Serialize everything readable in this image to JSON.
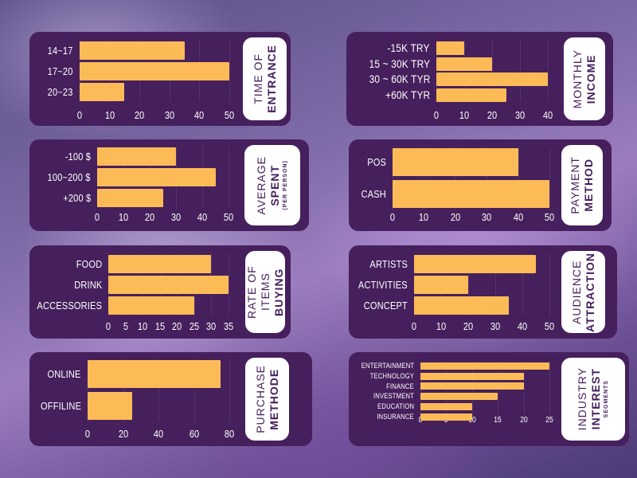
{
  "colors": {
    "panel": "#46205c",
    "bar": "#fdbb57",
    "title_bg": "#ffffff"
  },
  "chart_data": [
    {
      "type": "bar",
      "title": [
        "TIME OF",
        "ENTRANCE"
      ],
      "categories": [
        "14~17",
        "17~20",
        "20~23"
      ],
      "values": [
        35,
        50,
        15
      ],
      "ticks": [
        "0",
        "10",
        "20",
        "30",
        "40",
        "50"
      ],
      "xlim": [
        0,
        50
      ]
    },
    {
      "type": "bar",
      "title": [
        "MONTHLY",
        "INCOME"
      ],
      "categories": [
        "-15K TRY",
        "15 ~ 30K TRY",
        "30 ~ 60K TYR",
        "+60K TYR"
      ],
      "values": [
        10,
        20,
        40,
        25
      ],
      "ticks": [
        "0",
        "10",
        "20",
        "30",
        "40"
      ],
      "xlim": [
        0,
        40
      ]
    },
    {
      "type": "bar",
      "title": [
        "AVERAGE",
        "SPENT",
        "(PER PERSON)"
      ],
      "categories": [
        "-100 $",
        "100~200 $",
        "+200 $"
      ],
      "values": [
        30,
        45,
        25
      ],
      "ticks": [
        "0",
        "10",
        "20",
        "30",
        "40",
        "50"
      ],
      "xlim": [
        0,
        50
      ]
    },
    {
      "type": "bar",
      "title": [
        "PAYMENT",
        "METHOD"
      ],
      "categories": [
        "POS",
        "CASH"
      ],
      "values": [
        40,
        50
      ],
      "ticks": [
        "0",
        "10",
        "20",
        "30",
        "40",
        "50"
      ],
      "xlim": [
        0,
        50
      ]
    },
    {
      "type": "bar",
      "title": [
        "RATE OF ITEMS",
        "BUYING"
      ],
      "categories": [
        "FOOD",
        "DRINK",
        "ACCESSORIES"
      ],
      "values": [
        30,
        35,
        25
      ],
      "ticks": [
        "0",
        "5",
        "10",
        "15",
        "20",
        "25",
        "30",
        "35"
      ],
      "xlim": [
        0,
        35
      ]
    },
    {
      "type": "bar",
      "title": [
        "AUDIENCE",
        "ATTRACTION"
      ],
      "categories": [
        "ARTISTS",
        "ACTIVITIES",
        "CONCEPT"
      ],
      "values": [
        45,
        20,
        35
      ],
      "ticks": [
        "0",
        "10",
        "20",
        "30",
        "40",
        "50"
      ],
      "xlim": [
        0,
        50
      ]
    },
    {
      "type": "bar",
      "title": [
        "PURCHASE",
        "METHODE"
      ],
      "categories": [
        "ONLINE",
        "OFFILINE"
      ],
      "values": [
        75,
        25
      ],
      "ticks": [
        "0",
        "20",
        "40",
        "60",
        "80"
      ],
      "xlim": [
        0,
        80
      ]
    },
    {
      "type": "bar",
      "title": [
        "INDUSTRY",
        "INTEREST",
        "SEGMENTS"
      ],
      "categories": [
        "ENTERTAINMENT",
        "TECHNOLOGY",
        "FINANCE",
        "INVESTMENT",
        "EDUCATION",
        "INSURANCE"
      ],
      "values": [
        25,
        20,
        20,
        15,
        10,
        10
      ],
      "ticks": [
        "0",
        "5",
        "10",
        "15",
        "20",
        "25"
      ],
      "xlim": [
        0,
        25
      ]
    }
  ]
}
